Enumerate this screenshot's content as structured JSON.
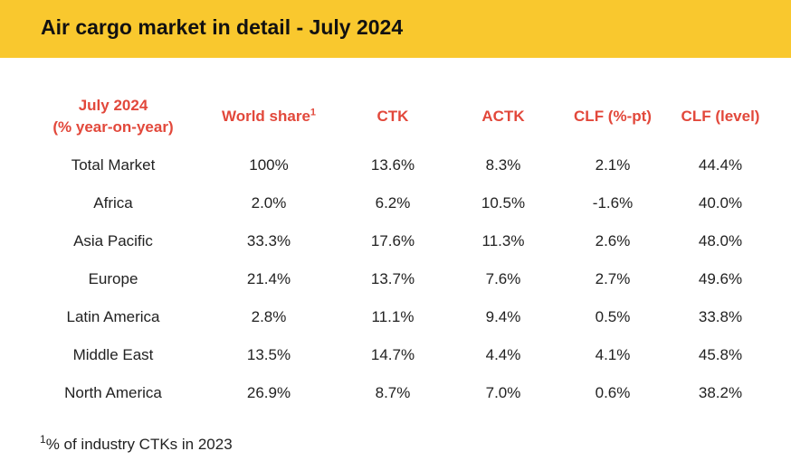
{
  "banner": {
    "title": "Air cargo market in detail - July 2024"
  },
  "table": {
    "headers": {
      "region_line1": "July 2024",
      "region_line2": "(% year-on-year)",
      "world_share": "World share",
      "world_share_sup": "1",
      "ctk": "CTK",
      "actk": "ACTK",
      "clf_pt": "CLF (%-pt)",
      "clf_level": "CLF (level)"
    },
    "rows": [
      {
        "region": "Total Market",
        "world_share": "100%",
        "ctk": "13.6%",
        "actk": "8.3%",
        "clf_pt": "2.1%",
        "clf_level": "44.4%"
      },
      {
        "region": "Africa",
        "world_share": "2.0%",
        "ctk": "6.2%",
        "actk": "10.5%",
        "clf_pt": "-1.6%",
        "clf_level": "40.0%"
      },
      {
        "region": "Asia Pacific",
        "world_share": "33.3%",
        "ctk": "17.6%",
        "actk": "11.3%",
        "clf_pt": "2.6%",
        "clf_level": "48.0%"
      },
      {
        "region": "Europe",
        "world_share": "21.4%",
        "ctk": "13.7%",
        "actk": "7.6%",
        "clf_pt": "2.7%",
        "clf_level": "49.6%"
      },
      {
        "region": "Latin America",
        "world_share": "2.8%",
        "ctk": "11.1%",
        "actk": "9.4%",
        "clf_pt": "0.5%",
        "clf_level": "33.8%"
      },
      {
        "region": "Middle East",
        "world_share": "13.5%",
        "ctk": "14.7%",
        "actk": "4.4%",
        "clf_pt": "4.1%",
        "clf_level": "45.8%"
      },
      {
        "region": "North America",
        "world_share": "26.9%",
        "ctk": "8.7%",
        "actk": "7.0%",
        "clf_pt": "0.6%",
        "clf_level": "38.2%"
      }
    ]
  },
  "footnote": {
    "mark": "1",
    "text": "% of industry CTKs in 2023"
  },
  "colors": {
    "banner": "#f9c82e",
    "header_text": "#e2483b",
    "body_text": "#222222"
  }
}
